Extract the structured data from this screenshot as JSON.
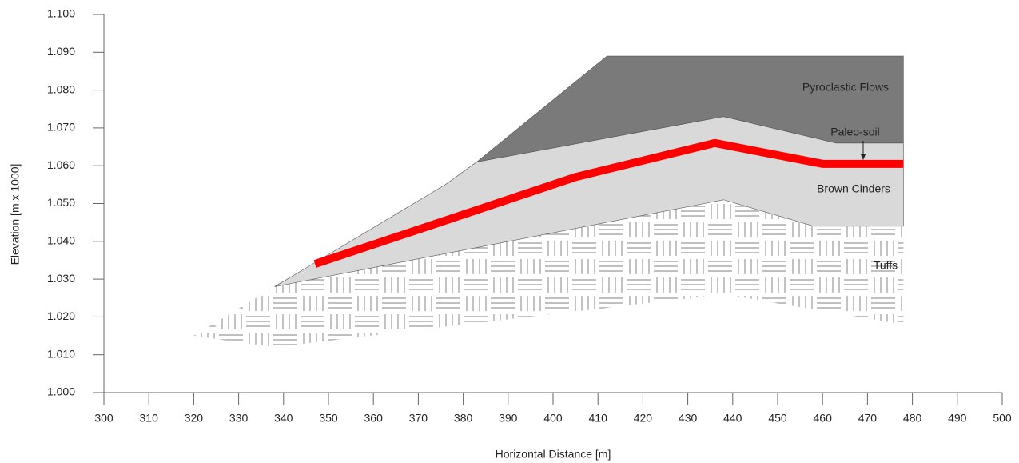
{
  "chart_data": {
    "type": "cross-section",
    "xlabel": "Horizontal Distance [m]",
    "ylabel": "Elevation [m x 1000]",
    "xlim": [
      300,
      500
    ],
    "ylim": [
      1,
      1.1
    ],
    "xticks": [
      300,
      310,
      320,
      330,
      340,
      350,
      360,
      370,
      380,
      390,
      400,
      410,
      420,
      430,
      440,
      450,
      460,
      470,
      480,
      490,
      500
    ],
    "yticks": [
      {
        "value": 1,
        "label": "1.000"
      },
      {
        "value": 1.01,
        "label": "1.010"
      },
      {
        "value": 1.02,
        "label": "1.020"
      },
      {
        "value": 1.03,
        "label": "1.030"
      },
      {
        "value": 1.04,
        "label": "1.040"
      },
      {
        "value": 1.05,
        "label": "1.050"
      },
      {
        "value": 1.06,
        "label": "1.060"
      },
      {
        "value": 1.07,
        "label": "1.070"
      },
      {
        "value": 1.08,
        "label": "1.080"
      },
      {
        "value": 1.09,
        "label": "1.090"
      },
      {
        "value": 1.1,
        "label": "1.100"
      }
    ],
    "series": [
      {
        "name": "Tuffs",
        "kind": "hatch",
        "color": "#8c8c8c",
        "x": [
          320,
          338,
          383,
          438,
          458,
          478,
          478,
          438,
          380,
          338
        ],
        "values": [
          1.015,
          1.028,
          1.039,
          1.051,
          1.044,
          1.044,
          1.018,
          1.026,
          1.018,
          1.012
        ]
      },
      {
        "name": "Brown Cinders",
        "kind": "polygon",
        "color": "#d9d9d9",
        "x": [
          338,
          376,
          383,
          438,
          463,
          478,
          478,
          458,
          438,
          338
        ],
        "values": [
          1.028,
          1.055,
          1.061,
          1.073,
          1.066,
          1.066,
          1.044,
          1.044,
          1.051,
          1.028
        ]
      },
      {
        "name": "Pyroclastic Flows",
        "kind": "polygon",
        "color": "#7a7a7a",
        "x": [
          383,
          412,
          478,
          478,
          463,
          438
        ],
        "values": [
          1.061,
          1.089,
          1.089,
          1.066,
          1.066,
          1.073
        ]
      },
      {
        "name": "Paleo-soil",
        "kind": "line",
        "color": "#ff0000",
        "x": [
          347,
          405,
          436,
          460,
          478
        ],
        "values": [
          1.034,
          1.057,
          1.066,
          1.0605,
          1.0605
        ]
      }
    ]
  }
}
